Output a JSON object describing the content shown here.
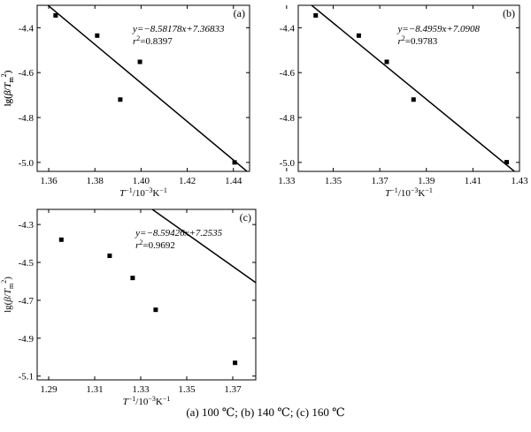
{
  "caption": "(a) 100 ℃; (b) 140 ℃; (c) 160 ℃",
  "chart_data": [
    {
      "type": "scatter",
      "panel_label": "(a)",
      "xlabel_parts": {
        "var": "T",
        "sup": "−1",
        "unit": "/10",
        "unit_sup": "−3",
        "unit2": "K",
        "unit2_sup": "−1"
      },
      "ylabel_parts": {
        "pre": "lg(",
        "beta": "β",
        "slash": "/",
        "T": "T",
        "sub": "m",
        "sup": "2",
        "post": ")"
      },
      "xlim": [
        1.355,
        1.447
      ],
      "ylim": [
        -5.04,
        -4.3
      ],
      "xticks": [
        "1.36",
        "1.38",
        "1.40",
        "1.42",
        "1.44"
      ],
      "xtick_values": [
        1.36,
        1.38,
        1.4,
        1.42,
        1.44
      ],
      "yticks": [
        "-4.4",
        "-4.6",
        "-4.8",
        "-5.0"
      ],
      "ytick_values": [
        -4.4,
        -4.6,
        -4.8,
        -5.0
      ],
      "points": [
        [
          1.363,
          -4.345
        ],
        [
          1.381,
          -4.435
        ],
        [
          1.391,
          -4.72
        ],
        [
          1.3995,
          -4.552
        ],
        [
          1.4405,
          -5.0
        ]
      ],
      "fit_line": {
        "slope": -8.58178,
        "intercept": 7.36833
      },
      "equation": "y=−8.58178x+7.36833",
      "r2_label": "r",
      "r2_sup": "2",
      "r2_value": "=0.8397"
    },
    {
      "type": "scatter",
      "panel_label": "(b)",
      "xlabel_parts": {
        "var": "T",
        "sup": "−1",
        "unit": "/10",
        "unit_sup": "−3",
        "unit2": "K",
        "unit2_sup": "−1"
      },
      "ylabel_parts": {
        "pre": "lg(",
        "beta": "β",
        "slash": "/",
        "T": "T",
        "sub": "m",
        "sup": "2",
        "post": ")"
      },
      "xlim": [
        1.335,
        1.43
      ],
      "ylim": [
        -5.04,
        -4.3
      ],
      "xticks": [
        "1.33",
        "1.35",
        "1.37",
        "1.39",
        "1.41",
        "1.43"
      ],
      "xtick_values": [
        1.33,
        1.35,
        1.37,
        1.39,
        1.41,
        1.43
      ],
      "yticks": [
        "-4.4",
        "-4.6",
        "-4.8",
        "-5.0"
      ],
      "ytick_values": [
        -4.4,
        -4.6,
        -4.8,
        -5.0
      ],
      "points": [
        [
          1.3425,
          -4.345
        ],
        [
          1.361,
          -4.435
        ],
        [
          1.373,
          -4.552
        ],
        [
          1.3845,
          -4.72
        ],
        [
          1.4245,
          -4.999
        ]
      ],
      "fit_line": {
        "slope": -8.4959,
        "intercept": 7.0908
      },
      "equation": "y=−8.4959x+7.0908",
      "r2_label": "r",
      "r2_sup": "2",
      "r2_value": "=0.9783"
    },
    {
      "type": "scatter",
      "panel_label": "(c)",
      "xlabel_parts": {
        "var": "T",
        "sup": "−1",
        "unit": "/10",
        "unit_sup": "−3",
        "unit2": "K",
        "unit2_sup": "−1"
      },
      "ylabel_parts": {
        "pre": "lg(",
        "beta": "β",
        "slash": "/",
        "T": "T",
        "sub": "m",
        "sup": "2",
        "post": ")"
      },
      "xlim": [
        1.285,
        1.38
      ],
      "ylim": [
        -5.12,
        -4.22
      ],
      "xticks": [
        "1.29",
        "1.31",
        "1.33",
        "1.35",
        "1.37"
      ],
      "xtick_values": [
        1.29,
        1.31,
        1.33,
        1.35,
        1.37
      ],
      "yticks": [
        "-4.3",
        "-4.5",
        "-4.7",
        "-4.9",
        "-5.1"
      ],
      "ytick_values": [
        -4.3,
        -4.5,
        -4.7,
        -4.9,
        -5.1
      ],
      "points": [
        [
          1.2955,
          -4.38
        ],
        [
          1.3165,
          -4.465
        ],
        [
          1.3265,
          -4.582
        ],
        [
          1.3365,
          -4.75
        ],
        [
          1.371,
          -5.03
        ]
      ],
      "fit_line": {
        "slope": -8.59426,
        "intercept": 7.2535
      },
      "equation": "y=−8.59426x+7.2535",
      "r2_label": "r",
      "r2_sup": "2",
      "r2_value": "=0.9692"
    }
  ]
}
